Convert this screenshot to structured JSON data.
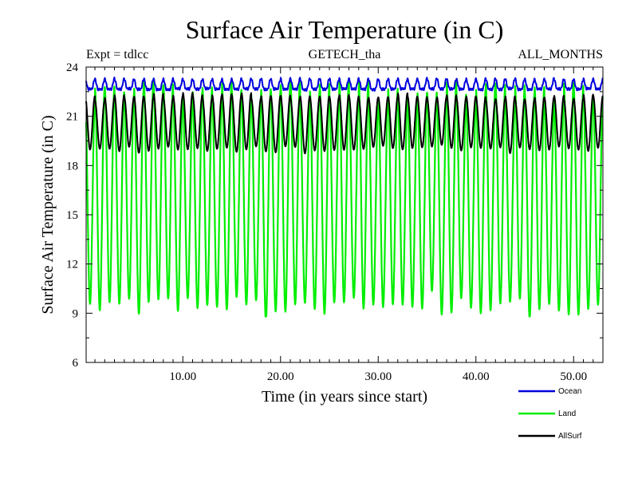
{
  "chart_data": {
    "type": "line",
    "title": "Surface Air Temperature (in C)",
    "subtitle_left": "Expt = tdlcc",
    "subtitle_center": "GETECH_tha",
    "subtitle_right": "ALL_MONTHS",
    "xlabel": "Time (in years since start)",
    "ylabel": "Surface Air Temperature (in C)",
    "xlim": [
      0.1,
      53.0
    ],
    "ylim": [
      6,
      24
    ],
    "x_ticks": [
      10,
      20,
      30,
      40,
      50
    ],
    "x_tick_labels": [
      "10.00",
      "20.00",
      "30.00",
      "40.00",
      "50.00"
    ],
    "y_ticks": [
      6,
      9,
      12,
      15,
      18,
      21,
      24
    ],
    "y_tick_labels": [
      "6",
      "9",
      "12",
      "15",
      "18",
      "21",
      "24"
    ],
    "grid": false,
    "legend_position": "bottom-right",
    "samples_per_year": 12,
    "series": [
      {
        "name": "Ocean",
        "color": "#0000dd",
        "annual_mean": 22.85,
        "seasonal_amplitude": 0.3,
        "approx_range": [
          22.2,
          23.4
        ]
      },
      {
        "name": "Land",
        "color": "#00ee00",
        "annual_mean": 16.0,
        "seasonal_amplitude": 6.5,
        "approx_range": [
          8.8,
          23.7
        ]
      },
      {
        "name": "AllSurf",
        "color": "#000000",
        "annual_mean": 20.6,
        "seasonal_amplitude": 1.6,
        "approx_range": [
          18.5,
          22.8
        ]
      }
    ]
  }
}
